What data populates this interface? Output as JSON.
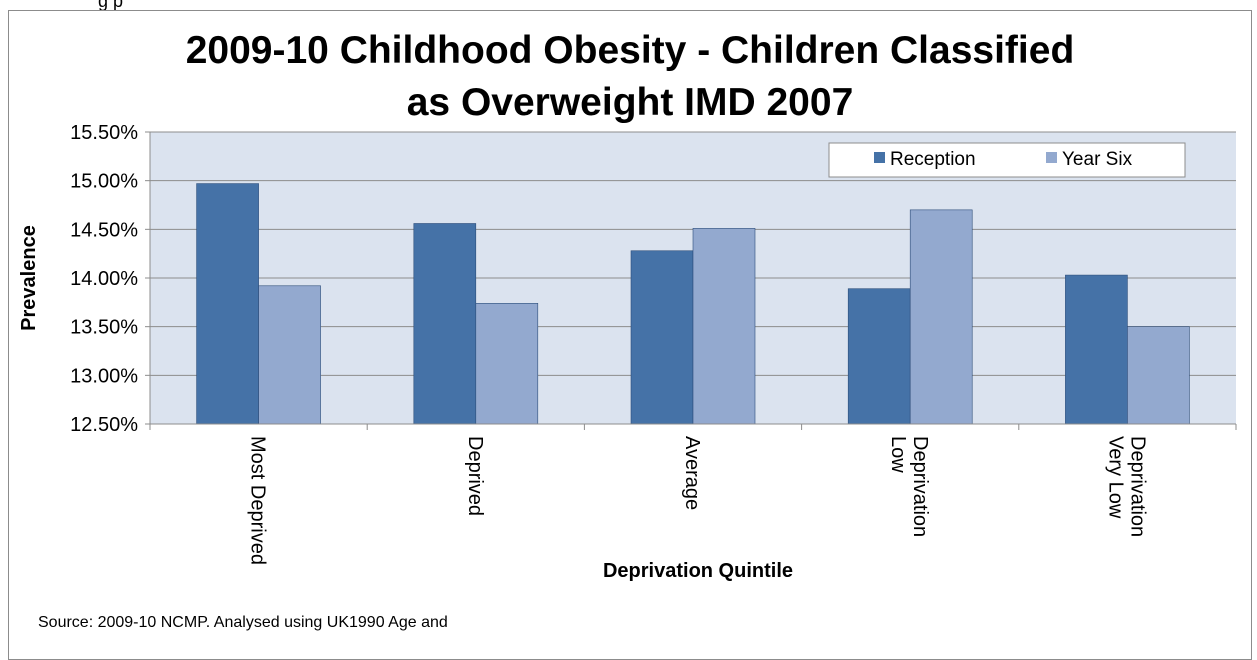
{
  "top_fragment": "g                                    p",
  "chart_data": {
    "type": "bar",
    "title": "2009-10 Childhood Obesity - Children Classified as Overweight  IMD 2007",
    "title_lines": [
      "2009-10 Childhood Obesity - Children Classified",
      "as Overweight  IMD 2007"
    ],
    "xlabel": "Deprivation Quintile",
    "ylabel": "Prevalence",
    "categories": [
      "Most Deprived",
      "Deprived",
      "Average",
      "Low Deprivation",
      "Very Low Deprivation"
    ],
    "category_label_lines": [
      [
        "Most Deprived"
      ],
      [
        "Deprived"
      ],
      [
        "Average"
      ],
      [
        "Low",
        "Deprivation"
      ],
      [
        "Very Low",
        "Deprivation"
      ]
    ],
    "series": [
      {
        "name": "Reception",
        "color": "#4572a7",
        "values": [
          14.97,
          14.56,
          14.28,
          13.89,
          14.03
        ]
      },
      {
        "name": "Year Six",
        "color": "#93a9cf",
        "values": [
          13.92,
          13.74,
          14.51,
          14.7,
          13.5
        ]
      }
    ],
    "ylim": [
      12.5,
      15.5
    ],
    "yticks": [
      "12.50%",
      "13.00%",
      "13.50%",
      "14.00%",
      "14.50%",
      "15.00%",
      "15.50%"
    ],
    "ytick_values": [
      12.5,
      13.0,
      13.5,
      14.0,
      14.5,
      15.0,
      15.5
    ],
    "grid": true,
    "legend_position": "top-right",
    "plot_background": "#dbe3ef"
  },
  "source_note": "Source: 2009-10 NCMP. Analysed using UK1990 Age and"
}
